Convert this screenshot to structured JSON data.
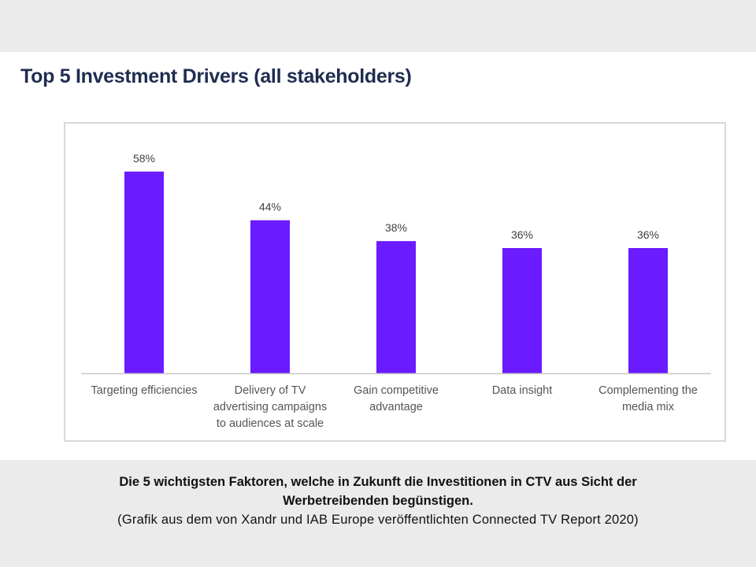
{
  "chart_data": {
    "type": "bar",
    "title": "Top 5 Investment Drivers (all stakeholders)",
    "categories": [
      "Targeting efficiencies",
      "Delivery of TV\nadvertising campaigns\nto audiences at scale",
      "Gain competitive\nadvantage",
      "Data insight",
      "Complementing the\nmedia mix"
    ],
    "values": [
      58,
      44,
      38,
      36,
      36
    ],
    "value_labels": [
      "58%",
      "44%",
      "38%",
      "36%",
      "36%"
    ],
    "ylim": [
      0,
      60
    ],
    "grid": false,
    "legend": "none",
    "bar_color": "#6a1bff"
  },
  "caption": {
    "bold_text": "Die 5 wichtigsten Faktoren, welche in Zukunft die Investitionen in CTV aus Sicht der\nWerbetreibenden begünstigen.",
    "source_text": "(Grafik aus dem von Xandr und IAB Europe veröffentlichten Connected TV Report 2020)"
  },
  "colors": {
    "title": "#1f2d50",
    "axis": "#c8c8c8",
    "background": "#ebebeb"
  }
}
